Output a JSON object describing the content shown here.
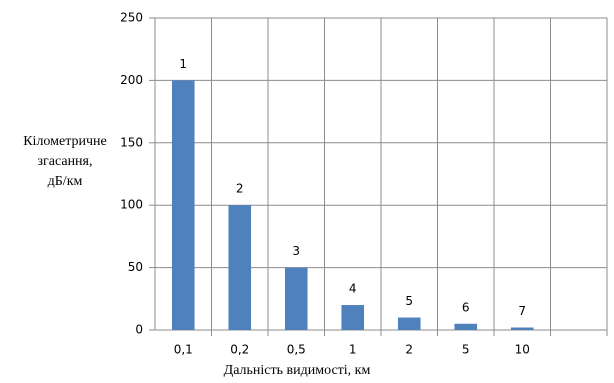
{
  "chart_data": {
    "type": "bar",
    "categories": [
      "0,1",
      "0,2",
      "0,5",
      "1",
      "2",
      "5",
      "10",
      null
    ],
    "values": [
      200,
      100,
      50,
      20,
      10,
      5,
      2,
      null
    ],
    "bar_labels": [
      "1",
      "2",
      "3",
      "4",
      "5",
      "6",
      "7",
      null
    ],
    "color": "#4f81bd",
    "ylabel": [
      "Кілометричне",
      "згасання,",
      "дБ/км"
    ],
    "xlabel": "Дальність видимості, км",
    "ylim": [
      0,
      250
    ],
    "yticks": [
      0,
      50,
      100,
      150,
      200,
      250
    ],
    "grid": true
  }
}
